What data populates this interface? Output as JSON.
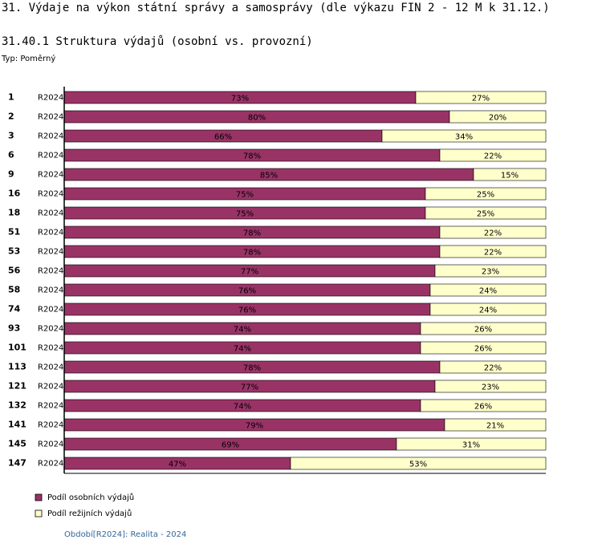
{
  "header": {
    "title": "31. Výdaje na výkon státní správy a samosprávy (dle výkazu FIN 2 - 12 M k 31.12.)"
  },
  "chart_data": {
    "type": "bar",
    "orientation": "horizontal",
    "stacked": true,
    "title": "31.40.1 Struktura výdajů (osobní vs. provozní)",
    "subtitle": "Typ: Poměrný",
    "categories": [
      "1",
      "2",
      "3",
      "6",
      "9",
      "16",
      "18",
      "51",
      "53",
      "56",
      "58",
      "74",
      "93",
      "101",
      "113",
      "121",
      "132",
      "141",
      "145",
      "147"
    ],
    "period_labels": [
      "R2024",
      "R2024",
      "R2024",
      "R2024",
      "R2024",
      "R2024",
      "R2024",
      "R2024",
      "R2024",
      "R2024",
      "R2024",
      "R2024",
      "R2024",
      "R2024",
      "R2024",
      "R2024",
      "R2024",
      "R2024",
      "R2024",
      "R2024"
    ],
    "xlim": [
      0,
      100
    ],
    "series": [
      {
        "name": "Podíl osobních výdajů",
        "color": "#993366",
        "values": [
          73,
          80,
          66,
          78,
          85,
          75,
          75,
          78,
          78,
          77,
          76,
          76,
          74,
          74,
          78,
          77,
          74,
          79,
          69,
          47
        ],
        "value_labels": [
          "73%",
          "80%",
          "66%",
          "78%",
          "85%",
          "75%",
          "75%",
          "78%",
          "78%",
          "77%",
          "76%",
          "76%",
          "74%",
          "74%",
          "78%",
          "77%",
          "74%",
          "79%",
          "69%",
          "47%"
        ]
      },
      {
        "name": "Podíl režijních výdajů",
        "color": "#ffffcc",
        "values": [
          27,
          20,
          34,
          22,
          15,
          25,
          25,
          22,
          22,
          23,
          24,
          24,
          26,
          26,
          22,
          23,
          26,
          21,
          31,
          53
        ],
        "value_labels": [
          "27%",
          "20%",
          "34%",
          "22%",
          "15%",
          "25%",
          "25%",
          "22%",
          "22%",
          "23%",
          "24%",
          "24%",
          "26%",
          "26%",
          "22%",
          "23%",
          "26%",
          "21%",
          "31%",
          "53%"
        ]
      }
    ]
  },
  "footer": {
    "note": "Období[R2024]: Realita - 2024"
  }
}
